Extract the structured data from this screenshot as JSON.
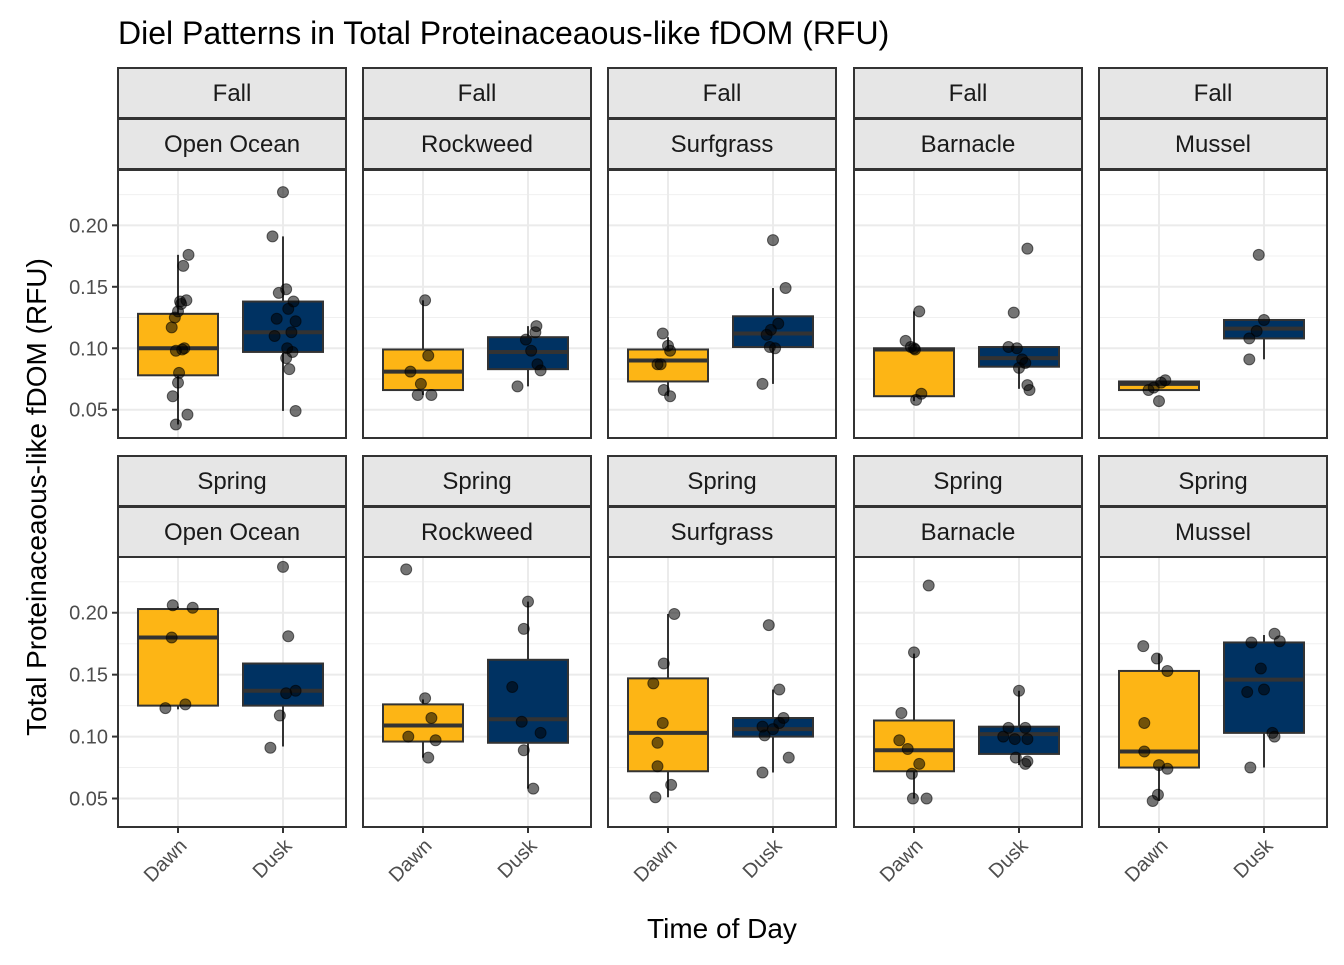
{
  "chart_data": {
    "type": "boxplot",
    "title": "Diel Patterns in Total Proteinaceaous-like fDOM (RFU)",
    "xlabel": "Time of Day",
    "ylabel": "Total Proteinaceaous-like fDOM (RFU)",
    "ylim": [
      0.027,
      0.245
    ],
    "yticks": [
      0.05,
      0.1,
      0.15,
      0.2
    ],
    "ytick_labels": [
      "0.05",
      "0.10",
      "0.15",
      "0.20"
    ],
    "categories": [
      "Dawn",
      "Dusk"
    ],
    "colors": {
      "Dawn": "#FDB515",
      "Dusk": "#003262"
    },
    "seasons": [
      "Fall",
      "Spring"
    ],
    "habitats": [
      "Open Ocean",
      "Rockweed",
      "Surfgrass",
      "Barnacle",
      "Mussel"
    ],
    "grid": true,
    "panels": [
      {
        "season": "Fall",
        "habitat": "Open Ocean",
        "groups": [
          {
            "name": "Dawn",
            "q1": 0.078,
            "median": 0.1,
            "q3": 0.128,
            "whisker_low": 0.038,
            "whisker_high": 0.176,
            "points": [
              [
                0.05,
                0.167
              ],
              [
                0.1,
                0.176
              ],
              [
                -0.03,
                0.125
              ],
              [
                0.0,
                0.13
              ],
              [
                -0.06,
                0.117
              ],
              [
                0.02,
                0.138
              ],
              [
                0.03,
                0.136
              ],
              [
                0.06,
                0.1
              ],
              [
                0.08,
                0.139
              ],
              [
                -0.02,
                0.098
              ],
              [
                0.01,
                0.08
              ],
              [
                0.0,
                0.072
              ],
              [
                -0.05,
                0.061
              ],
              [
                0.09,
                0.046
              ],
              [
                -0.02,
                0.038
              ],
              [
                0.04,
                0.099
              ]
            ]
          },
          {
            "name": "Dusk",
            "q1": 0.097,
            "median": 0.113,
            "q3": 0.138,
            "whisker_low": 0.049,
            "whisker_high": 0.191,
            "points": [
              [
                0.0,
                0.227
              ],
              [
                -0.1,
                0.191
              ],
              [
                -0.04,
                0.145
              ],
              [
                0.03,
                0.148
              ],
              [
                0.1,
                0.138
              ],
              [
                0.05,
                0.132
              ],
              [
                -0.06,
                0.124
              ],
              [
                0.12,
                0.122
              ],
              [
                0.08,
                0.113
              ],
              [
                -0.08,
                0.11
              ],
              [
                0.04,
                0.1
              ],
              [
                0.09,
                0.097
              ],
              [
                0.03,
                0.092
              ],
              [
                0.06,
                0.083
              ],
              [
                0.12,
                0.049
              ]
            ]
          }
        ]
      },
      {
        "season": "Fall",
        "habitat": "Rockweed",
        "groups": [
          {
            "name": "Dawn",
            "q1": 0.066,
            "median": 0.081,
            "q3": 0.099,
            "whisker_low": 0.062,
            "whisker_high": 0.139,
            "points": [
              [
                0.02,
                0.139
              ],
              [
                0.05,
                0.094
              ],
              [
                -0.12,
                0.081
              ],
              [
                -0.02,
                0.071
              ],
              [
                0.08,
                0.062
              ],
              [
                -0.05,
                0.062
              ]
            ]
          },
          {
            "name": "Dusk",
            "q1": 0.083,
            "median": 0.097,
            "q3": 0.109,
            "whisker_low": 0.069,
            "whisker_high": 0.118,
            "points": [
              [
                0.08,
                0.118
              ],
              [
                0.07,
                0.113
              ],
              [
                -0.02,
                0.107
              ],
              [
                0.03,
                0.098
              ],
              [
                0.09,
                0.087
              ],
              [
                0.12,
                0.082
              ],
              [
                -0.1,
                0.069
              ]
            ]
          }
        ]
      },
      {
        "season": "Fall",
        "habitat": "Surfgrass",
        "groups": [
          {
            "name": "Dawn",
            "q1": 0.073,
            "median": 0.09,
            "q3": 0.099,
            "whisker_low": 0.061,
            "whisker_high": 0.109,
            "points": [
              [
                -0.05,
                0.112
              ],
              [
                0.0,
                0.102
              ],
              [
                0.02,
                0.098
              ],
              [
                -0.07,
                0.087
              ],
              [
                -0.1,
                0.087
              ],
              [
                -0.04,
                0.066
              ],
              [
                0.02,
                0.061
              ]
            ]
          },
          {
            "name": "Dusk",
            "q1": 0.101,
            "median": 0.112,
            "q3": 0.126,
            "whisker_low": 0.071,
            "whisker_high": 0.149,
            "points": [
              [
                0.0,
                0.188
              ],
              [
                0.12,
                0.149
              ],
              [
                0.05,
                0.12
              ],
              [
                -0.02,
                0.115
              ],
              [
                -0.06,
                0.111
              ],
              [
                -0.03,
                0.101
              ],
              [
                0.02,
                0.1
              ],
              [
                -0.1,
                0.071
              ]
            ]
          }
        ]
      },
      {
        "season": "Fall",
        "habitat": "Barnacle",
        "groups": [
          {
            "name": "Dawn",
            "q1": 0.061,
            "median": 0.099,
            "q3": 0.1,
            "whisker_low": 0.057,
            "whisker_high": 0.13,
            "points": [
              [
                0.05,
                0.13
              ],
              [
                -0.08,
                0.106
              ],
              [
                -0.03,
                0.101
              ],
              [
                0.0,
                0.1
              ],
              [
                0.01,
                0.099
              ],
              [
                0.07,
                0.063
              ],
              [
                0.02,
                0.058
              ]
            ]
          },
          {
            "name": "Dusk",
            "q1": 0.085,
            "median": 0.092,
            "q3": 0.101,
            "whisker_low": 0.067,
            "whisker_high": 0.101,
            "points": [
              [
                0.08,
                0.181
              ],
              [
                -0.05,
                0.129
              ],
              [
                -0.1,
                0.101
              ],
              [
                -0.02,
                0.1
              ],
              [
                0.03,
                0.091
              ],
              [
                0.06,
                0.088
              ],
              [
                0.0,
                0.084
              ],
              [
                0.08,
                0.07
              ],
              [
                0.1,
                0.066
              ]
            ]
          }
        ]
      },
      {
        "season": "Fall",
        "habitat": "Mussel",
        "groups": [
          {
            "name": "Dawn",
            "q1": 0.066,
            "median": 0.071,
            "q3": 0.073,
            "whisker_low": 0.066,
            "whisker_high": 0.074,
            "points": [
              [
                -0.05,
                0.068
              ],
              [
                0.02,
                0.072
              ],
              [
                0.06,
                0.074
              ],
              [
                -0.1,
                0.066
              ],
              [
                0.0,
                0.057
              ]
            ]
          },
          {
            "name": "Dusk",
            "q1": 0.108,
            "median": 0.116,
            "q3": 0.123,
            "whisker_low": 0.091,
            "whisker_high": 0.123,
            "points": [
              [
                -0.05,
                0.176
              ],
              [
                0.0,
                0.123
              ],
              [
                -0.07,
                0.114
              ],
              [
                -0.14,
                0.108
              ],
              [
                -0.14,
                0.091
              ]
            ]
          }
        ]
      },
      {
        "season": "Spring",
        "habitat": "Open Ocean",
        "groups": [
          {
            "name": "Dawn",
            "q1": 0.125,
            "median": 0.18,
            "q3": 0.203,
            "whisker_low": 0.122,
            "whisker_high": 0.205,
            "points": [
              [
                -0.05,
                0.206
              ],
              [
                0.14,
                0.204
              ],
              [
                -0.06,
                0.18
              ],
              [
                -0.12,
                0.123
              ],
              [
                0.07,
                0.126
              ]
            ]
          },
          {
            "name": "Dusk",
            "q1": 0.125,
            "median": 0.137,
            "q3": 0.159,
            "whisker_low": 0.092,
            "whisker_high": 0.159,
            "points": [
              [
                0.0,
                0.237
              ],
              [
                0.05,
                0.181
              ],
              [
                0.03,
                0.135
              ],
              [
                0.12,
                0.137
              ],
              [
                -0.03,
                0.117
              ],
              [
                -0.12,
                0.091
              ]
            ]
          }
        ]
      },
      {
        "season": "Spring",
        "habitat": "Rockweed",
        "groups": [
          {
            "name": "Dawn",
            "q1": 0.096,
            "median": 0.109,
            "q3": 0.126,
            "whisker_low": 0.083,
            "whisker_high": 0.13,
            "points": [
              [
                -0.16,
                0.235
              ],
              [
                0.02,
                0.131
              ],
              [
                0.08,
                0.115
              ],
              [
                -0.14,
                0.1
              ],
              [
                0.12,
                0.097
              ],
              [
                0.05,
                0.083
              ]
            ]
          },
          {
            "name": "Dusk",
            "q1": 0.095,
            "median": 0.114,
            "q3": 0.162,
            "whisker_low": 0.058,
            "whisker_high": 0.209,
            "points": [
              [
                0.0,
                0.209
              ],
              [
                -0.04,
                0.187
              ],
              [
                -0.15,
                0.14
              ],
              [
                -0.06,
                0.112
              ],
              [
                0.12,
                0.103
              ],
              [
                -0.04,
                0.089
              ],
              [
                0.05,
                0.058
              ]
            ]
          }
        ]
      },
      {
        "season": "Spring",
        "habitat": "Surfgrass",
        "groups": [
          {
            "name": "Dawn",
            "q1": 0.072,
            "median": 0.103,
            "q3": 0.147,
            "whisker_low": 0.051,
            "whisker_high": 0.199,
            "points": [
              [
                0.06,
                0.199
              ],
              [
                -0.04,
                0.159
              ],
              [
                -0.14,
                0.143
              ],
              [
                -0.05,
                0.111
              ],
              [
                -0.1,
                0.095
              ],
              [
                -0.1,
                0.076
              ],
              [
                0.03,
                0.061
              ],
              [
                -0.12,
                0.051
              ]
            ]
          },
          {
            "name": "Dusk",
            "q1": 0.1,
            "median": 0.106,
            "q3": 0.115,
            "whisker_low": 0.071,
            "whisker_high": 0.138,
            "points": [
              [
                -0.04,
                0.19
              ],
              [
                0.06,
                0.138
              ],
              [
                0.1,
                0.115
              ],
              [
                0.06,
                0.111
              ],
              [
                -0.1,
                0.108
              ],
              [
                0.0,
                0.106
              ],
              [
                -0.08,
                0.101
              ],
              [
                0.15,
                0.083
              ],
              [
                -0.1,
                0.071
              ]
            ]
          }
        ]
      },
      {
        "season": "Spring",
        "habitat": "Barnacle",
        "groups": [
          {
            "name": "Dawn",
            "q1": 0.072,
            "median": 0.089,
            "q3": 0.113,
            "whisker_low": 0.05,
            "whisker_high": 0.167,
            "points": [
              [
                0.14,
                0.222
              ],
              [
                0.0,
                0.168
              ],
              [
                -0.12,
                0.119
              ],
              [
                -0.14,
                0.097
              ],
              [
                -0.06,
                0.09
              ],
              [
                0.05,
                0.078
              ],
              [
                -0.02,
                0.07
              ],
              [
                0.12,
                0.05
              ],
              [
                -0.01,
                0.05
              ]
            ]
          },
          {
            "name": "Dusk",
            "q1": 0.086,
            "median": 0.102,
            "q3": 0.108,
            "whisker_low": 0.077,
            "whisker_high": 0.137,
            "points": [
              [
                0.0,
                0.137
              ],
              [
                -0.1,
                0.107
              ],
              [
                0.06,
                0.107
              ],
              [
                0.08,
                0.098
              ],
              [
                -0.15,
                0.1
              ],
              [
                -0.04,
                0.098
              ],
              [
                -0.03,
                0.083
              ],
              [
                0.06,
                0.078
              ],
              [
                0.08,
                0.08
              ]
            ]
          }
        ]
      },
      {
        "season": "Spring",
        "habitat": "Mussel",
        "groups": [
          {
            "name": "Dawn",
            "q1": 0.075,
            "median": 0.088,
            "q3": 0.153,
            "whisker_low": 0.048,
            "whisker_high": 0.167,
            "points": [
              [
                -0.15,
                0.173
              ],
              [
                -0.02,
                0.163
              ],
              [
                0.08,
                0.153
              ],
              [
                -0.14,
                0.111
              ],
              [
                -0.14,
                0.088
              ],
              [
                0.0,
                0.077
              ],
              [
                0.08,
                0.074
              ],
              [
                -0.01,
                0.053
              ],
              [
                -0.06,
                0.048
              ]
            ]
          },
          {
            "name": "Dusk",
            "q1": 0.103,
            "median": 0.146,
            "q3": 0.176,
            "whisker_low": 0.075,
            "whisker_high": 0.182,
            "points": [
              [
                0.1,
                0.183
              ],
              [
                0.15,
                0.177
              ],
              [
                -0.12,
                0.176
              ],
              [
                -0.03,
                0.155
              ],
              [
                0.0,
                0.138
              ],
              [
                -0.16,
                0.136
              ],
              [
                0.08,
                0.103
              ],
              [
                0.1,
                0.1
              ],
              [
                -0.13,
                0.075
              ]
            ]
          }
        ]
      }
    ]
  }
}
